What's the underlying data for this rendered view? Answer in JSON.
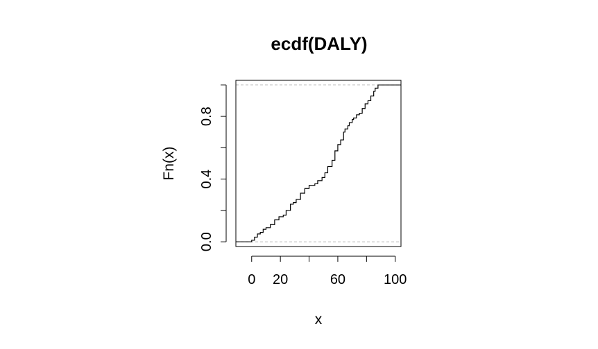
{
  "chart_data": {
    "type": "line",
    "step": true,
    "title": "ecdf(DALY)",
    "xlabel": "x",
    "ylabel": "Fn(x)",
    "xlim": [
      -11,
      104
    ],
    "ylim": [
      -0.03,
      1.03
    ],
    "xticks": [
      0,
      20,
      40,
      60,
      80,
      100
    ],
    "xtick_labels": [
      "0",
      "20",
      "",
      "60",
      "",
      "100"
    ],
    "yticks": [
      0.0,
      0.2,
      0.4,
      0.6,
      0.8,
      1.0
    ],
    "ytick_labels": [
      "0.0",
      "",
      "0.4",
      "",
      "0.8",
      ""
    ],
    "reference_lines": [
      0,
      1
    ],
    "colors": {
      "line": "#000000",
      "reference": "#b3b3b3",
      "axis": "#000000"
    },
    "series": [
      {
        "x": [
          -11,
          0,
          2,
          4,
          6,
          8,
          10,
          13,
          16,
          19,
          22,
          24,
          27,
          29,
          31,
          34,
          37,
          40,
          42,
          44,
          46,
          49,
          51,
          53,
          56,
          58,
          60,
          62,
          64,
          65,
          67,
          68,
          70,
          71,
          73,
          75,
          77,
          79,
          81,
          83,
          85,
          86,
          88,
          90,
          104
        ],
        "y": [
          0.0,
          0.01,
          0.03,
          0.05,
          0.06,
          0.08,
          0.09,
          0.11,
          0.14,
          0.16,
          0.17,
          0.2,
          0.24,
          0.25,
          0.27,
          0.31,
          0.34,
          0.36,
          0.36,
          0.37,
          0.39,
          0.41,
          0.44,
          0.48,
          0.52,
          0.58,
          0.62,
          0.65,
          0.7,
          0.72,
          0.74,
          0.76,
          0.78,
          0.79,
          0.81,
          0.82,
          0.85,
          0.88,
          0.9,
          0.93,
          0.96,
          0.98,
          1.0,
          1.0,
          1.0
        ]
      }
    ]
  }
}
